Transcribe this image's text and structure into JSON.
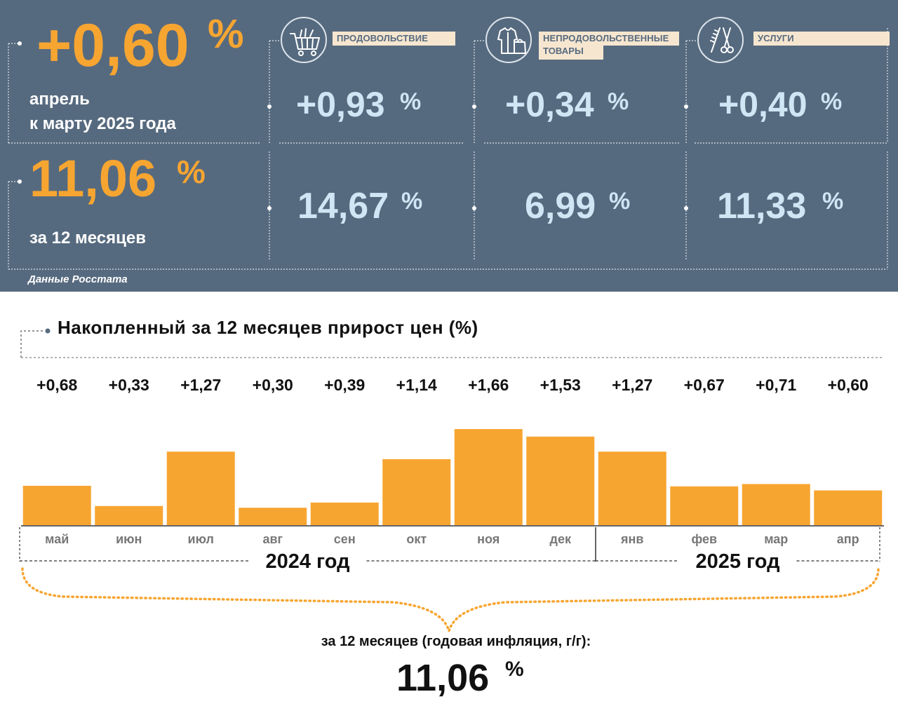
{
  "summary": {
    "month_change": {
      "value": "+0,60",
      "unit": "%",
      "caption_line1": "апрель",
      "caption_line2": "к марту 2025 года"
    },
    "annual_change": {
      "value": "11,06",
      "unit": "%",
      "caption": "за 12 месяцев"
    },
    "source": "Данные Росстата"
  },
  "categories": [
    {
      "label": "ПРОДОВОЛЬСТВИЕ",
      "icon": "shopping-cart-icon",
      "month": "+0,93",
      "year": "14,67",
      "unit": "%"
    },
    {
      "label_line1": "НЕПРОДОВОЛЬСТВЕННЫЕ",
      "label_line2": "ТОВАРЫ",
      "icon": "clothes-bag-icon",
      "month": "+0,34",
      "year": "6,99",
      "unit": "%"
    },
    {
      "label": "УСЛУГИ",
      "icon": "comb-scissors-icon",
      "month": "+0,40",
      "year": "11,33",
      "unit": "%"
    }
  ],
  "colors": {
    "panel": "#566a7f",
    "accent": "#f7a531",
    "value_blue": "#cfe6f5",
    "label_bg": "#f6e6cf"
  },
  "chart_data": {
    "type": "bar",
    "title": "Накопленный за 12 месяцев прирост цен (%)",
    "categories": [
      "май",
      "июн",
      "июл",
      "авг",
      "сен",
      "окт",
      "ноя",
      "дек",
      "янв",
      "фев",
      "мар",
      "апр"
    ],
    "values": [
      0.68,
      0.33,
      1.27,
      0.3,
      0.39,
      1.14,
      1.66,
      1.53,
      1.27,
      0.67,
      0.71,
      0.6
    ],
    "value_labels": [
      "+0,68",
      "+0,33",
      "+1,27",
      "+0,30",
      "+0,39",
      "+1,14",
      "+1,66",
      "+1,53",
      "+1,27",
      "+0,67",
      "+0,71",
      "+0,60"
    ],
    "year_groups": [
      {
        "label": "2024 год",
        "months": 8
      },
      {
        "label": "2025 год",
        "months": 4
      }
    ],
    "ylim": [
      0,
      1.66
    ],
    "color": "#f7a531",
    "grid": false,
    "legend": "none"
  },
  "footer": {
    "caption": "за 12 месяцев (годовая инфляция, г/г):",
    "value": "11,06",
    "unit": "%"
  }
}
